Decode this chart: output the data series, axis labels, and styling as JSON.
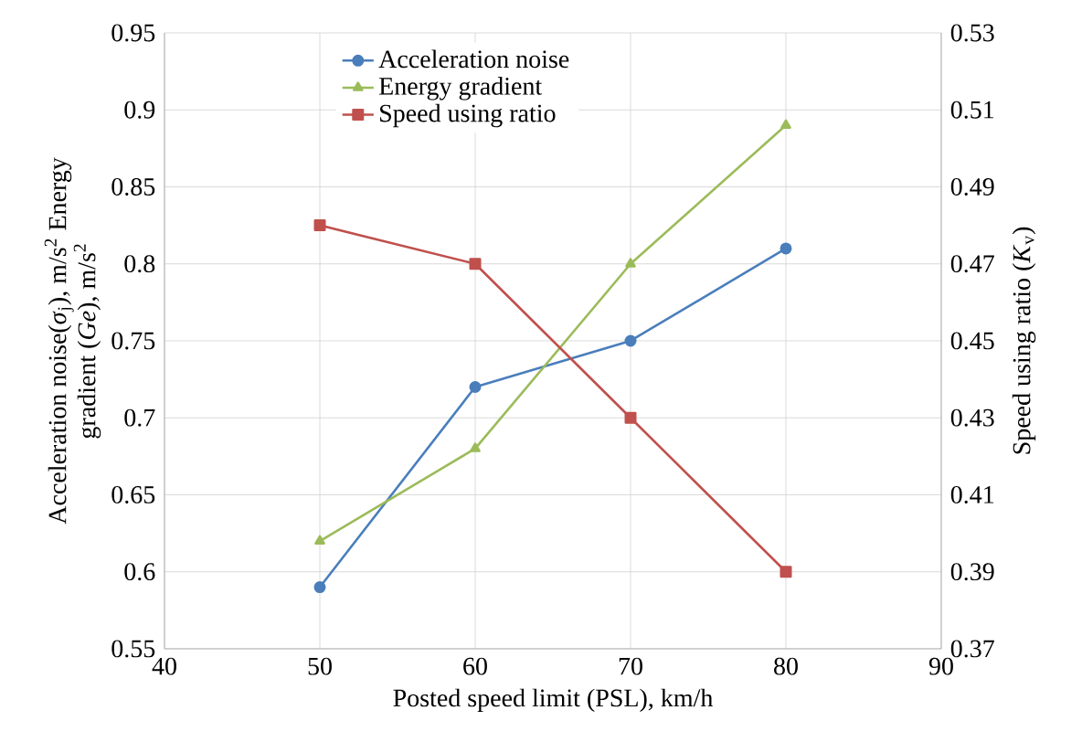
{
  "chart_data": {
    "type": "line",
    "xlabel": "Posted speed limit  (PSL), km/h",
    "ylabel": "Acceleration noise(*σ*$_{j}$), m/s$^{2}$ Energy gradient (*Ge*), m/s$^{2}$",
    "y2label": "Speed using ratio  (*K*$_{v}$)",
    "x": [
      50,
      60,
      70,
      80
    ],
    "series": [
      {
        "name": "Acceleration noise",
        "color": "#4a7ebb",
        "marker": "circle",
        "values": [
          0.59,
          0.72,
          0.75,
          0.81
        ]
      },
      {
        "name": "Energy gradient",
        "color": "#9bbb59",
        "marker": "triangle",
        "values": [
          0.62,
          0.68,
          0.8,
          0.89
        ]
      },
      {
        "name": "Speed using ratio",
        "color": "#c0504d",
        "marker": "square",
        "axis": "y2",
        "values": [
          0.48,
          0.47,
          0.43,
          0.39
        ]
      }
    ],
    "xlim": [
      40,
      90
    ],
    "xticks": [
      40,
      50,
      60,
      70,
      80,
      90
    ],
    "ylim": [
      0.55,
      0.95
    ],
    "yticks": [
      0.55,
      0.6,
      0.65,
      0.7,
      0.75,
      0.8,
      0.85,
      0.9,
      0.95
    ],
    "y2lim": [
      0.37,
      0.53
    ],
    "y2ticks": [
      0.37,
      0.39,
      0.41,
      0.43,
      0.45,
      0.47,
      0.49,
      0.51,
      0.53
    ],
    "grid": true,
    "legend": "top"
  }
}
